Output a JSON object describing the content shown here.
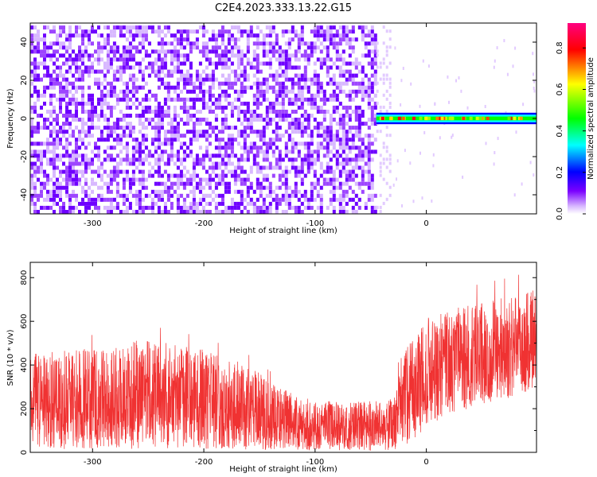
{
  "title": "C2E4.2023.333.13.22.G15",
  "chart_data": [
    {
      "type": "heatmap",
      "xlabel": "Height of straight line (km)",
      "ylabel": "Frequency (Hz)",
      "xlim": [
        -356,
        99
      ],
      "ylim": [
        -50,
        50
      ],
      "xticks": [
        -300,
        -200,
        -100,
        0
      ],
      "yticks": [
        -40,
        -20,
        0,
        20,
        40
      ],
      "colorbar": {
        "label": "Normalized spectral amplitude",
        "range": [
          0,
          0.92
        ],
        "ticks": [
          0.0,
          0.2,
          0.4,
          0.6,
          0.8
        ],
        "tick_labels": [
          "0.0",
          "0.2",
          "0.4",
          "0.6",
          "0.8"
        ],
        "colormap": [
          "#ffffff",
          "#7a00ff",
          "#0000ff",
          "#00ffff",
          "#00ff00",
          "#ffff00",
          "#ff0000",
          "#ff00ff"
        ]
      },
      "regions": [
        {
          "x": [
            -356,
            -45
          ],
          "y": [
            -50,
            48
          ],
          "level": 0.12
        },
        {
          "x": [
            -45,
            -33
          ],
          "y": [
            -50,
            48
          ],
          "level": 0.03
        },
        {
          "x": [
            -45,
            99
          ],
          "y": [
            -3,
            3
          ],
          "level": 0.45
        },
        {
          "x": [
            -45,
            99
          ],
          "y": [
            -1,
            1
          ],
          "level": 0.7
        }
      ]
    },
    {
      "type": "line",
      "xlabel": "Height of straight line (km)",
      "ylabel": "SNR (10 * v/v)",
      "xlim": [
        -356,
        99
      ],
      "ylim": [
        0,
        870
      ],
      "xticks": [
        -300,
        -200,
        -100,
        0
      ],
      "yticks": [
        0,
        200,
        400,
        600,
        800
      ],
      "color": "#f03232",
      "envelope": [
        {
          "x": -356,
          "low": 15,
          "mid": 200,
          "high": 450
        },
        {
          "x": -300,
          "low": 15,
          "mid": 230,
          "high": 480
        },
        {
          "x": -250,
          "low": 15,
          "mid": 240,
          "high": 520
        },
        {
          "x": -200,
          "low": 15,
          "mid": 215,
          "high": 470
        },
        {
          "x": -160,
          "low": 10,
          "mid": 170,
          "high": 400
        },
        {
          "x": -140,
          "low": 10,
          "mid": 140,
          "high": 330
        },
        {
          "x": -120,
          "low": 10,
          "mid": 120,
          "high": 270
        },
        {
          "x": -100,
          "low": 8,
          "mid": 105,
          "high": 240
        },
        {
          "x": -70,
          "low": 8,
          "mid": 100,
          "high": 230
        },
        {
          "x": -40,
          "low": 8,
          "mid": 105,
          "high": 240
        },
        {
          "x": -27,
          "low": 10,
          "mid": 120,
          "high": 270
        },
        {
          "x": -25,
          "low": 80,
          "mid": 250,
          "high": 420
        },
        {
          "x": -18,
          "low": 20,
          "mid": 300,
          "high": 480
        },
        {
          "x": 0,
          "low": 120,
          "mid": 400,
          "high": 620
        },
        {
          "x": 40,
          "low": 200,
          "mid": 450,
          "high": 680
        },
        {
          "x": 80,
          "low": 250,
          "mid": 480,
          "high": 720
        },
        {
          "x": 99,
          "low": 300,
          "mid": 500,
          "high": 760
        }
      ],
      "max_spike": 850
    }
  ]
}
